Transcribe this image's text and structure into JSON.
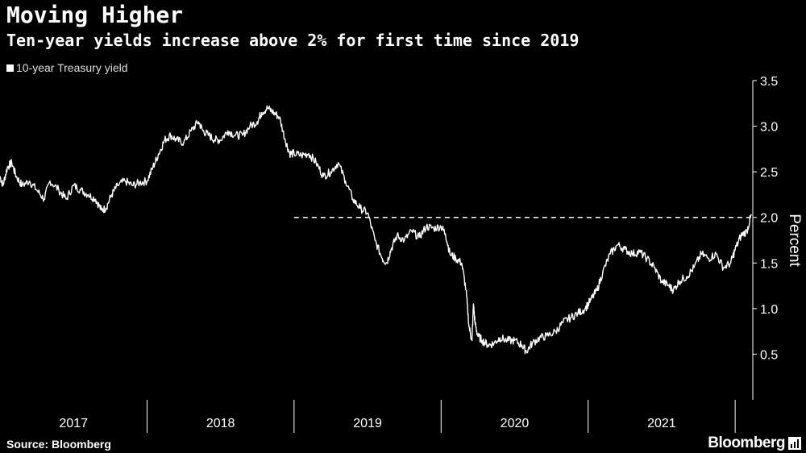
{
  "header": {
    "title": "Moving Higher",
    "subtitle": "Ten-year yields increase above 2% for first time since 2019"
  },
  "footer": {
    "source": "Source: Bloomberg",
    "brand": "Bloomberg"
  },
  "colors": {
    "background": "#000000",
    "line": "#ffffff",
    "reference": "#ffffff",
    "axis": "#ffffff"
  },
  "chart_data": {
    "type": "line",
    "title": "Moving Higher",
    "subtitle": "Ten-year yields increase above 2% for first time since 2019",
    "xlabel": "",
    "ylabel": "Percent",
    "ylim": [
      0,
      3.5
    ],
    "y_axis_side": "right",
    "yticks": [
      0.5,
      1.0,
      1.5,
      2.0,
      2.5,
      3.0,
      3.5
    ],
    "ytick_labels": [
      "0.5",
      "1.0",
      "1.5",
      "2.0",
      "2.5",
      "3.0",
      "3.5"
    ],
    "xlim": [
      2017.0,
      2022.12
    ],
    "xticks": [
      2017,
      2018,
      2019,
      2020,
      2021
    ],
    "xtick_labels": [
      "2017",
      "2018",
      "2019",
      "2020",
      "2021"
    ],
    "grid": false,
    "legend": {
      "position": "top-left",
      "entries": [
        "10-year Treasury yield"
      ]
    },
    "reference_line": {
      "y": 2.0,
      "x_start": 2019.0,
      "style": "dashed"
    },
    "series": [
      {
        "name": "10-year Treasury yield",
        "x": [
          2017.0,
          2017.02,
          2017.05,
          2017.08,
          2017.11,
          2017.15,
          2017.2,
          2017.25,
          2017.3,
          2017.34,
          2017.4,
          2017.45,
          2017.5,
          2017.55,
          2017.6,
          2017.65,
          2017.69,
          2017.72,
          2017.76,
          2017.8,
          2017.85,
          2017.9,
          2017.95,
          2018.0,
          2018.04,
          2018.08,
          2018.12,
          2018.16,
          2018.2,
          2018.25,
          2018.3,
          2018.35,
          2018.38,
          2018.42,
          2018.46,
          2018.5,
          2018.55,
          2018.6,
          2018.65,
          2018.7,
          2018.75,
          2018.78,
          2018.82,
          2018.86,
          2018.9,
          2018.94,
          2018.97,
          2019.0,
          2019.05,
          2019.1,
          2019.15,
          2019.2,
          2019.25,
          2019.3,
          2019.35,
          2019.4,
          2019.45,
          2019.5,
          2019.55,
          2019.6,
          2019.63,
          2019.66,
          2019.7,
          2019.75,
          2019.8,
          2019.85,
          2019.9,
          2019.95,
          2020.0,
          2020.03,
          2020.06,
          2020.1,
          2020.14,
          2020.17,
          2020.19,
          2020.21,
          2020.22,
          2020.23,
          2020.25,
          2020.28,
          2020.32,
          2020.36,
          2020.4,
          2020.45,
          2020.5,
          2020.55,
          2020.58,
          2020.62,
          2020.67,
          2020.72,
          2020.78,
          2020.83,
          2020.88,
          2020.93,
          2020.98,
          2021.02,
          2021.06,
          2021.1,
          2021.15,
          2021.2,
          2021.25,
          2021.3,
          2021.35,
          2021.4,
          2021.45,
          2021.5,
          2021.55,
          2021.58,
          2021.62,
          2021.67,
          2021.72,
          2021.77,
          2021.82,
          2021.87,
          2021.92,
          2021.97,
          2022.0,
          2022.04,
          2022.08,
          2022.11
        ],
        "values": [
          2.45,
          2.35,
          2.55,
          2.6,
          2.45,
          2.35,
          2.4,
          2.3,
          2.2,
          2.4,
          2.3,
          2.2,
          2.35,
          2.3,
          2.25,
          2.2,
          2.08,
          2.1,
          2.25,
          2.35,
          2.4,
          2.35,
          2.38,
          2.4,
          2.55,
          2.7,
          2.85,
          2.9,
          2.85,
          2.82,
          2.95,
          3.05,
          2.95,
          2.9,
          2.85,
          2.85,
          2.95,
          2.9,
          2.9,
          3.0,
          3.05,
          3.15,
          3.2,
          3.15,
          3.1,
          2.85,
          2.7,
          2.7,
          2.68,
          2.7,
          2.6,
          2.45,
          2.5,
          2.6,
          2.4,
          2.2,
          2.1,
          2.05,
          1.75,
          1.55,
          1.5,
          1.65,
          1.8,
          1.75,
          1.85,
          1.78,
          1.9,
          1.88,
          1.9,
          1.82,
          1.6,
          1.55,
          1.5,
          1.2,
          0.8,
          0.65,
          1.05,
          0.85,
          0.7,
          0.65,
          0.6,
          0.62,
          0.68,
          0.65,
          0.65,
          0.6,
          0.53,
          0.62,
          0.68,
          0.7,
          0.75,
          0.85,
          0.9,
          0.95,
          1.0,
          1.1,
          1.2,
          1.4,
          1.6,
          1.7,
          1.65,
          1.6,
          1.62,
          1.55,
          1.45,
          1.3,
          1.25,
          1.2,
          1.3,
          1.35,
          1.45,
          1.6,
          1.55,
          1.6,
          1.45,
          1.5,
          1.65,
          1.8,
          1.85,
          2.03
        ]
      }
    ]
  }
}
